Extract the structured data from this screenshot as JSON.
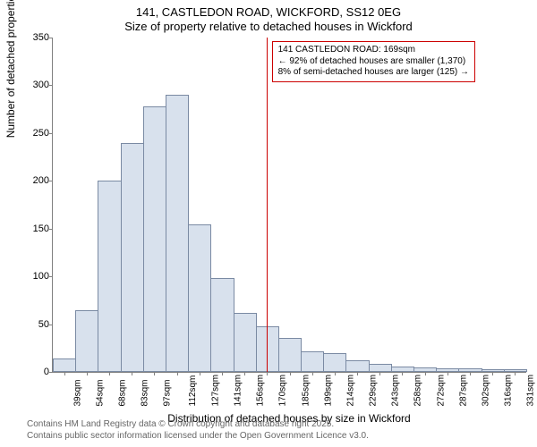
{
  "title_main": "141, CASTLEDON ROAD, WICKFORD, SS12 0EG",
  "title_sub": "Size of property relative to detached houses in Wickford",
  "ylabel": "Number of detached properties",
  "xlabel": "Distribution of detached houses by size in Wickford",
  "chart": {
    "type": "histogram",
    "ylim": [
      0,
      350
    ],
    "ytick_step": 50,
    "bar_fill": "#d8e1ed",
    "bar_stroke": "#7a8aa3",
    "background": "#ffffff",
    "axis_color": "#808080",
    "marker_color": "#cc0000",
    "marker_bin_index": 9,
    "categories": [
      "39sqm",
      "54sqm",
      "68sqm",
      "83sqm",
      "97sqm",
      "112sqm",
      "127sqm",
      "141sqm",
      "156sqm",
      "170sqm",
      "185sqm",
      "199sqm",
      "214sqm",
      "229sqm",
      "243sqm",
      "258sqm",
      "272sqm",
      "287sqm",
      "302sqm",
      "316sqm",
      "331sqm"
    ],
    "values": [
      14,
      65,
      200,
      240,
      278,
      290,
      154,
      98,
      62,
      48,
      36,
      22,
      20,
      12,
      8,
      6,
      5,
      4,
      4,
      3,
      3
    ]
  },
  "annotation": {
    "line1": "141 CASTLEDON ROAD: 169sqm",
    "line2": "← 92% of detached houses are smaller (1,370)",
    "line3": "8% of semi-detached houses are larger (125) →"
  },
  "footer": {
    "line1": "Contains HM Land Registry data © Crown copyright and database right 2025.",
    "line2": "Contains public sector information licensed under the Open Government Licence v3.0."
  }
}
